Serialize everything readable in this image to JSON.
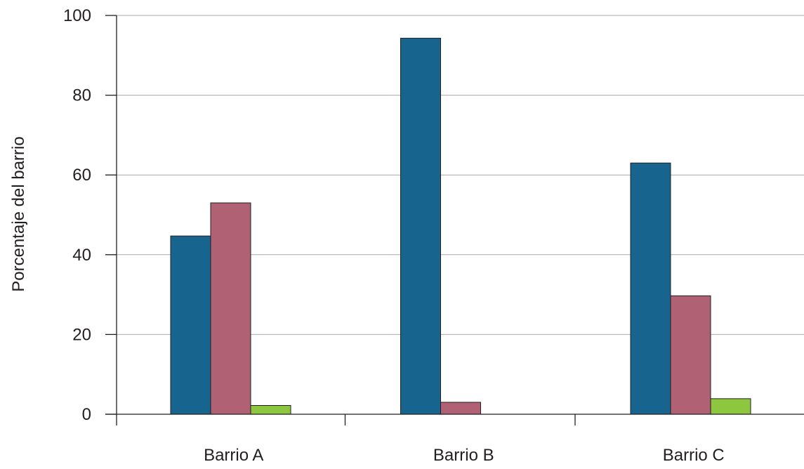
{
  "chart_data": {
    "type": "bar",
    "title": "",
    "xlabel": "",
    "ylabel": "Porcentaje del barrio",
    "ylim": [
      0,
      100
    ],
    "yticks": [
      0,
      20,
      40,
      60,
      80,
      100
    ],
    "grid": true,
    "legend": "none",
    "categories": [
      "Barrio A",
      "Barrio B",
      "Barrio C"
    ],
    "series": [
      {
        "color": "#17648f",
        "values": [
          44.7,
          94.3,
          63.0
        ]
      },
      {
        "color": "#b06174",
        "values": [
          53.0,
          3.0,
          29.7
        ]
      },
      {
        "color": "#8dc63f",
        "values": [
          2.2,
          0,
          3.9
        ]
      }
    ]
  }
}
